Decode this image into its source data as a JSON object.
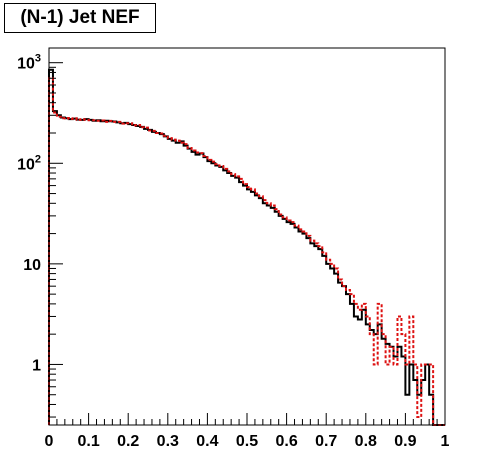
{
  "chart_data": {
    "type": "histogram",
    "title": "(N-1) Jet NEF",
    "xlabel": "",
    "ylabel": "",
    "xlim": [
      0,
      1
    ],
    "ylim": [
      0.25,
      1400
    ],
    "yscale": "log",
    "x_ticks": [
      "0",
      "0.1",
      "0.2",
      "0.3",
      "0.4",
      "0.5",
      "0.6",
      "0.7",
      "0.8",
      "0.9",
      "1"
    ],
    "y_ticks": [
      {
        "value": 1000,
        "base": "10",
        "exp": "3"
      },
      {
        "value": 100,
        "base": "10",
        "exp": "2"
      },
      {
        "value": 10,
        "base": "10",
        "exp": ""
      },
      {
        "value": 1,
        "base": "1",
        "exp": ""
      }
    ],
    "grid": false,
    "bins": {
      "start": 0,
      "width": 0.01,
      "count": 100
    },
    "series": [
      {
        "color": "#000000",
        "style": "solid",
        "values": [
          850,
          330,
          300,
          285,
          280,
          275,
          278,
          272,
          270,
          275,
          270,
          265,
          268,
          262,
          265,
          262,
          260,
          255,
          250,
          252,
          245,
          240,
          235,
          230,
          220,
          215,
          205,
          200,
          195,
          185,
          175,
          168,
          160,
          165,
          150,
          140,
          130,
          122,
          125,
          115,
          105,
          100,
          95,
          92,
          85,
          80,
          75,
          72,
          65,
          60,
          55,
          52,
          48,
          45,
          40,
          38,
          36,
          33,
          30,
          28,
          26,
          25,
          23,
          21,
          20,
          18,
          16,
          15,
          14,
          12,
          10,
          9,
          8,
          6.5,
          6,
          5,
          4,
          3,
          2.8,
          3.5,
          2.5,
          2.2,
          2.0,
          2.5,
          1.8,
          1.6,
          1.5,
          1.2,
          1.5,
          1.2,
          0.5,
          1.0,
          0.7,
          0.5,
          0.7,
          1.0,
          0.5,
          0.25,
          0,
          0
        ]
      },
      {
        "color": "#dd1111",
        "style": "dashed",
        "values": [
          700,
          320,
          290,
          280,
          282,
          276,
          280,
          270,
          274,
          270,
          268,
          268,
          265,
          266,
          258,
          264,
          258,
          258,
          248,
          250,
          250,
          238,
          240,
          228,
          226,
          212,
          210,
          200,
          198,
          188,
          178,
          172,
          168,
          160,
          155,
          142,
          134,
          128,
          126,
          118,
          108,
          104,
          98,
          94,
          88,
          83,
          78,
          74,
          70,
          62,
          58,
          55,
          50,
          47,
          43,
          40,
          38,
          35,
          31,
          29,
          27,
          26,
          24,
          22,
          21,
          19,
          17,
          16,
          15,
          13,
          11,
          10,
          9,
          7,
          6,
          5.5,
          5,
          4,
          3.5,
          4,
          3,
          2,
          1,
          4,
          2,
          1,
          1.5,
          1,
          3,
          2,
          1,
          3,
          1,
          0.3,
          1,
          1,
          1,
          0.25,
          0,
          0
        ]
      }
    ]
  }
}
